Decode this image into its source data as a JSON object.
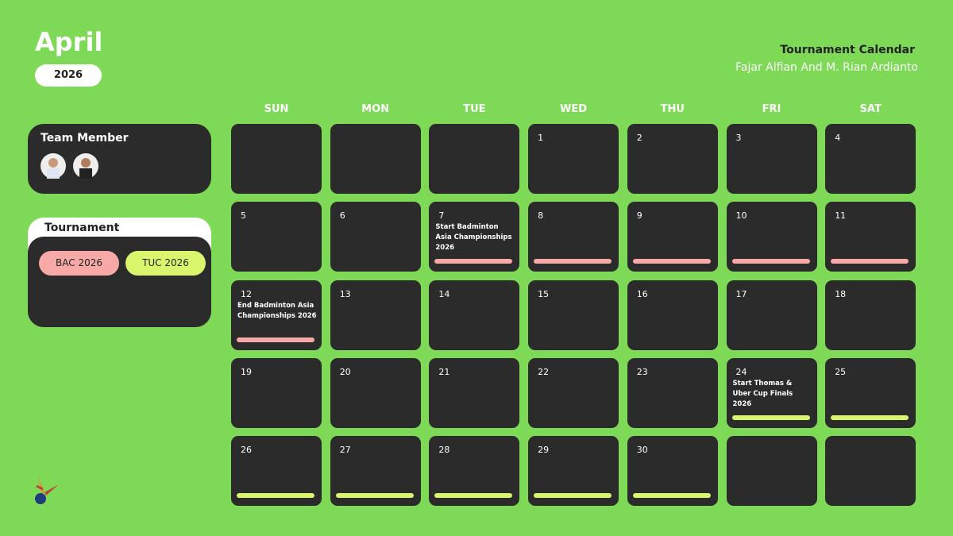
{
  "header": {
    "month": "April",
    "year": "2026",
    "title": "Tournament Calendar",
    "subtitle": "Fajar Alfian And M. Rian Ardianto"
  },
  "team": {
    "heading": "Team Member"
  },
  "tournament": {
    "heading": "Tournament",
    "tags": [
      {
        "label": "BAC 2026",
        "color": "#f7a9a8"
      },
      {
        "label": "TUC 2026",
        "color": "#d8f56b"
      }
    ]
  },
  "calendar": {
    "weekdays": [
      "SUN",
      "MON",
      "TUE",
      "WED",
      "THU",
      "FRI",
      "SAT"
    ],
    "cells": [
      {},
      {},
      {},
      {
        "day": 1
      },
      {
        "day": 2
      },
      {
        "day": 3
      },
      {
        "day": 4
      },
      {
        "day": 5
      },
      {
        "day": 6
      },
      {
        "day": 7,
        "event": "Start Badminton Asia Championships 2026",
        "bar_color": "#f7a9a8"
      },
      {
        "day": 8,
        "bar_color": "#f7a9a8"
      },
      {
        "day": 9,
        "bar_color": "#f7a9a8"
      },
      {
        "day": 10,
        "bar_color": "#f7a9a8"
      },
      {
        "day": 11,
        "bar_color": "#f7a9a8"
      },
      {
        "day": 12,
        "event": "End Badminton Asia Championships 2026",
        "bar_color": "#f7a9a8"
      },
      {
        "day": 13
      },
      {
        "day": 14
      },
      {
        "day": 15
      },
      {
        "day": 16
      },
      {
        "day": 17
      },
      {
        "day": 18
      },
      {
        "day": 19
      },
      {
        "day": 20
      },
      {
        "day": 21
      },
      {
        "day": 22
      },
      {
        "day": 23
      },
      {
        "day": 24,
        "event": "Start Thomas & Uber Cup Finals 2026",
        "bar_color": "#d8f56b"
      },
      {
        "day": 25,
        "bar_color": "#d8f56b"
      },
      {
        "day": 26,
        "bar_color": "#d8f56b"
      },
      {
        "day": 27,
        "bar_color": "#d8f56b"
      },
      {
        "day": 28,
        "bar_color": "#d8f56b"
      },
      {
        "day": 29,
        "bar_color": "#d8f56b"
      },
      {
        "day": 30,
        "bar_color": "#d8f56b"
      },
      {},
      {}
    ]
  }
}
